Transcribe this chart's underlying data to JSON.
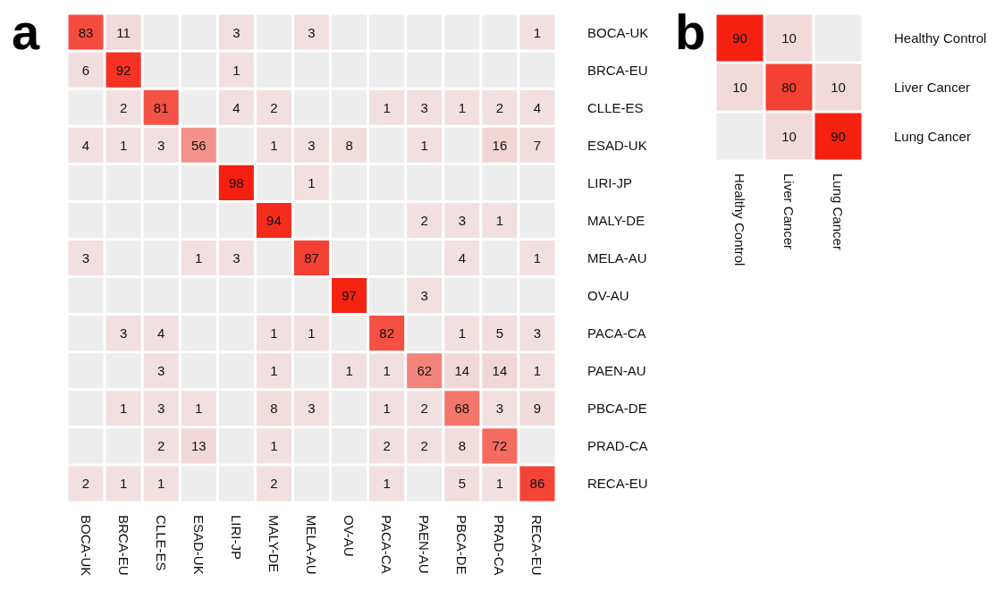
{
  "chart_data": [
    {
      "type": "heatmap",
      "title": "a",
      "data_labels": true,
      "categories": [
        "BOCA-UK",
        "BRCA-EU",
        "CLLE-ES",
        "ESAD-UK",
        "LIRI-JP",
        "MALY-DE",
        "MELA-AU",
        "OV-AU",
        "PACA-CA",
        "PAEN-AU",
        "PBCA-DE",
        "PRAD-CA",
        "RECA-EU"
      ],
      "y_categories": [
        "BOCA-UK",
        "BRCA-EU",
        "CLLE-ES",
        "ESAD-UK",
        "LIRI-JP",
        "MALY-DE",
        "MELA-AU",
        "OV-AU",
        "PACA-CA",
        "PAEN-AU",
        "PBCA-DE",
        "PRAD-CA",
        "RECA-EU"
      ],
      "cells": [
        [
          83,
          11,
          null,
          null,
          3,
          null,
          3,
          null,
          null,
          null,
          null,
          null,
          1
        ],
        [
          6,
          92,
          null,
          null,
          1,
          null,
          null,
          null,
          null,
          null,
          null,
          null,
          null
        ],
        [
          null,
          2,
          81,
          null,
          4,
          2,
          null,
          null,
          1,
          3,
          1,
          2,
          4
        ],
        [
          4,
          1,
          3,
          56,
          null,
          1,
          3,
          8,
          null,
          1,
          null,
          16,
          7
        ],
        [
          null,
          null,
          null,
          null,
          98,
          null,
          1,
          null,
          null,
          null,
          null,
          null,
          null
        ],
        [
          null,
          null,
          null,
          null,
          null,
          94,
          null,
          null,
          null,
          2,
          3,
          1,
          null
        ],
        [
          3,
          null,
          null,
          1,
          3,
          null,
          87,
          null,
          null,
          null,
          4,
          null,
          1
        ],
        [
          null,
          null,
          null,
          null,
          null,
          null,
          null,
          97,
          null,
          3,
          null,
          null,
          null
        ],
        [
          null,
          3,
          4,
          null,
          null,
          1,
          1,
          null,
          82,
          null,
          1,
          5,
          3
        ],
        [
          null,
          null,
          3,
          null,
          null,
          1,
          null,
          1,
          1,
          62,
          14,
          14,
          1
        ],
        [
          null,
          1,
          3,
          1,
          null,
          8,
          3,
          null,
          1,
          2,
          68,
          3,
          9
        ],
        [
          null,
          null,
          2,
          13,
          null,
          1,
          null,
          null,
          2,
          2,
          8,
          72,
          null
        ],
        [
          2,
          1,
          1,
          null,
          null,
          2,
          null,
          null,
          1,
          null,
          5,
          1,
          86
        ]
      ]
    },
    {
      "type": "heatmap",
      "title": "b",
      "data_labels": true,
      "categories": [
        "Healthy Control",
        "Liver Cancer",
        "Lung Cancer"
      ],
      "y_categories": [
        "Healthy Control",
        "Liver Cancer",
        "Lung Cancer"
      ],
      "cells": [
        [
          90,
          10,
          null
        ],
        [
          10,
          80,
          10
        ],
        [
          null,
          10,
          90
        ]
      ]
    }
  ]
}
